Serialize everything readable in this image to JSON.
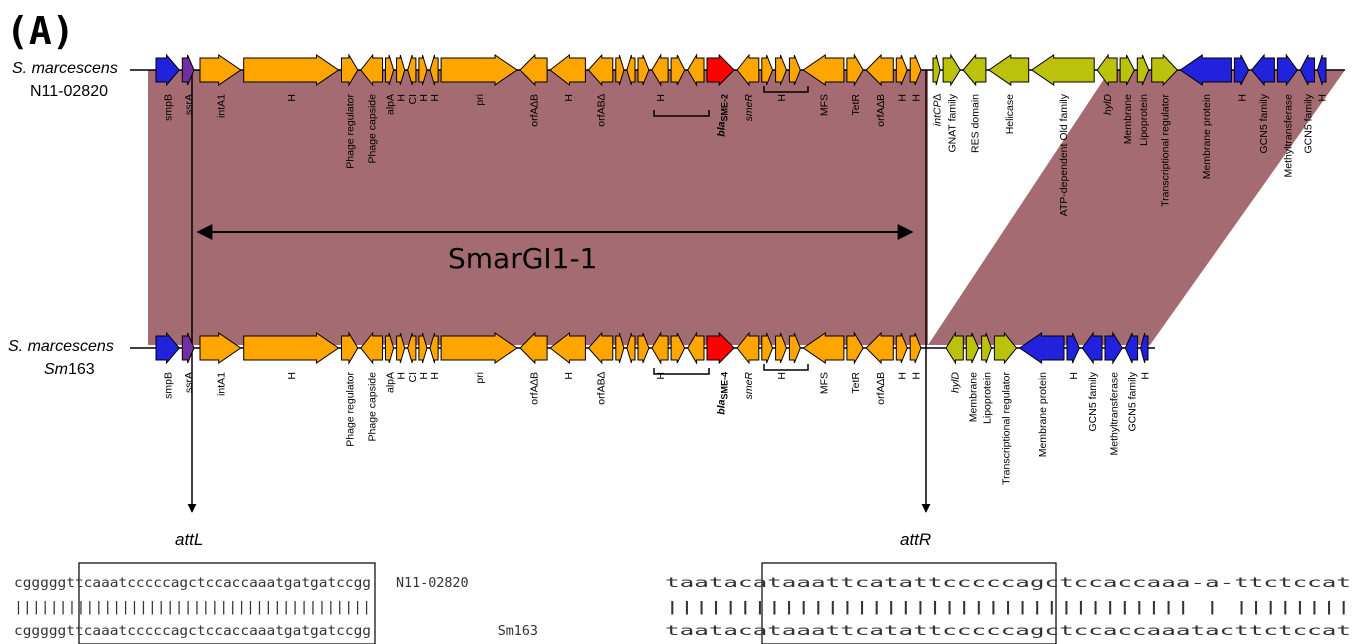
{
  "panel_label": "(A)",
  "island_label": "SmarGI1-1",
  "att_left": "attL",
  "att_right": "attR",
  "colors": {
    "orange": "#ffa500",
    "purple": "#7030a0",
    "blue": "#2222dd",
    "red": "#ff0000",
    "lime": "#bcc20c",
    "shade": "#a56b73"
  },
  "top": {
    "species": "S. marcescens",
    "strain": "N11-02820",
    "genes": [
      {
        "label": "smpB",
        "color": "blue",
        "dir": 1,
        "w": 1
      },
      {
        "label": "ssrA",
        "color": "purple",
        "dir": 1,
        "w": 0.5
      },
      {
        "label": "intA1",
        "color": "orange",
        "dir": 1,
        "w": 1.5
      },
      {
        "label": "H",
        "color": "orange",
        "dir": 1,
        "w": 3.5
      },
      {
        "label": "Phage regulator",
        "color": "orange",
        "dir": 1,
        "w": 0.6
      },
      {
        "label": "Phage capside",
        "color": "orange",
        "dir": -1,
        "w": 0.8
      },
      {
        "label": "alpA",
        "color": "orange",
        "dir": 1,
        "w": 0.3
      },
      {
        "label": "H",
        "color": "orange",
        "dir": 1,
        "w": 0.3
      },
      {
        "label": "CI",
        "color": "orange",
        "dir": -1,
        "w": 0.3
      },
      {
        "label": "H",
        "color": "orange",
        "dir": 1,
        "w": 0.3
      },
      {
        "label": "H",
        "color": "orange",
        "dir": -1,
        "w": 0.3
      },
      {
        "label": "pri",
        "color": "orange",
        "dir": 1,
        "w": 2.8
      },
      {
        "label": "orfA∆B",
        "color": "orange",
        "dir": -1,
        "w": 1
      },
      {
        "label": "H",
        "color": "orange",
        "dir": -1,
        "w": 1.3
      },
      {
        "label": "orfAB∆",
        "color": "orange",
        "dir": -1,
        "w": 0.9
      },
      {
        "label": "",
        "color": "orange",
        "dir": 1,
        "w": 0.3
      },
      {
        "label": "",
        "color": "orange",
        "dir": -1,
        "w": 0.3
      },
      {
        "label": "",
        "color": "orange",
        "dir": 1,
        "w": 0.4
      },
      {
        "label": "H",
        "color": "orange",
        "dir": -1,
        "w": 0.6
      },
      {
        "label": "",
        "color": "orange",
        "dir": 1,
        "w": 0.5
      },
      {
        "label": "",
        "color": "orange",
        "dir": -1,
        "w": 0.6
      },
      {
        "label": "bla",
        "sub": "SME-2",
        "color": "red",
        "dir": 1,
        "w": 1
      },
      {
        "label": "smeR",
        "color": "orange",
        "dir": -1,
        "w": 0.8
      },
      {
        "label": "",
        "color": "orange",
        "dir": 1,
        "w": 0.4
      },
      {
        "label": "H",
        "color": "orange",
        "dir": 1,
        "w": 0.4
      },
      {
        "label": "",
        "color": "orange",
        "dir": 1,
        "w": 0.4
      },
      {
        "label": "MFS",
        "color": "orange",
        "dir": -1,
        "w": 1.5
      },
      {
        "label": "TetR",
        "color": "orange",
        "dir": 1,
        "w": 0.6
      },
      {
        "label": "orfA∆B",
        "color": "orange",
        "dir": -1,
        "w": 1
      },
      {
        "label": "H",
        "color": "orange",
        "dir": 1,
        "w": 0.4
      },
      {
        "label": "H",
        "color": "orange",
        "dir": 1,
        "w": 0.4
      },
      {
        "label": "intCP∆",
        "color": "lime",
        "dir": 1,
        "w": 0.25
      },
      {
        "label": "GNAT family",
        "color": "lime",
        "dir": 1,
        "w": 0.6
      },
      {
        "label": "RES domain",
        "color": "lime",
        "dir": -1,
        "w": 0.8
      },
      {
        "label": "Helicase",
        "color": "lime",
        "dir": -1,
        "w": 1.4
      },
      {
        "label": "ATP-dependent Old family",
        "color": "lime",
        "dir": -1,
        "w": 2.2
      },
      {
        "label": "hylD",
        "color": "lime",
        "dir": -1,
        "w": 0.7
      },
      {
        "label": "Membrane",
        "color": "lime",
        "dir": 1,
        "w": 0.5
      },
      {
        "label": "Lipoprotein",
        "color": "lime",
        "dir": 1,
        "w": 0.4
      },
      {
        "label": "Transcriptional regulator",
        "color": "lime",
        "dir": 1,
        "w": 0.9
      },
      {
        "label": "Membrane protein",
        "color": "blue",
        "dir": -1,
        "w": 1.8
      },
      {
        "label": "H",
        "color": "blue",
        "dir": 1,
        "w": 0.5
      },
      {
        "label": "GCN5 family",
        "color": "blue",
        "dir": -1,
        "w": 0.8
      },
      {
        "label": "Methyltransferase",
        "color": "blue",
        "dir": 1,
        "w": 0.7
      },
      {
        "label": "GCN5 family",
        "color": "blue",
        "dir": -1,
        "w": 0.5
      },
      {
        "label": "H",
        "color": "blue",
        "dir": -1,
        "w": 0.3
      }
    ]
  },
  "bottom": {
    "species": "S. marcescens",
    "strain": "Sm163",
    "genes": [
      {
        "label": "smpB",
        "color": "blue",
        "dir": 1,
        "w": 1
      },
      {
        "label": "ssrA",
        "color": "purple",
        "dir": 1,
        "w": 0.5
      },
      {
        "label": "intA1",
        "color": "orange",
        "dir": 1,
        "w": 1.5
      },
      {
        "label": "H",
        "color": "orange",
        "dir": 1,
        "w": 3.5
      },
      {
        "label": "Phage regulator",
        "color": "orange",
        "dir": 1,
        "w": 0.6
      },
      {
        "label": "Phage capside",
        "color": "orange",
        "dir": -1,
        "w": 0.8
      },
      {
        "label": "alpA",
        "color": "orange",
        "dir": 1,
        "w": 0.3
      },
      {
        "label": "H",
        "color": "orange",
        "dir": 1,
        "w": 0.3
      },
      {
        "label": "CI",
        "color": "orange",
        "dir": -1,
        "w": 0.3
      },
      {
        "label": "H",
        "color": "orange",
        "dir": 1,
        "w": 0.3
      },
      {
        "label": "H",
        "color": "orange",
        "dir": -1,
        "w": 0.3
      },
      {
        "label": "pri",
        "color": "orange",
        "dir": 1,
        "w": 2.8
      },
      {
        "label": "orfA∆B",
        "color": "orange",
        "dir": -1,
        "w": 1
      },
      {
        "label": "H",
        "color": "orange",
        "dir": -1,
        "w": 1.3
      },
      {
        "label": "orfAB∆",
        "color": "orange",
        "dir": -1,
        "w": 0.9
      },
      {
        "label": "",
        "color": "orange",
        "dir": 1,
        "w": 0.3
      },
      {
        "label": "",
        "color": "orange",
        "dir": -1,
        "w": 0.3
      },
      {
        "label": "",
        "color": "orange",
        "dir": 1,
        "w": 0.4
      },
      {
        "label": "H",
        "color": "orange",
        "dir": -1,
        "w": 0.6
      },
      {
        "label": "",
        "color": "orange",
        "dir": 1,
        "w": 0.5
      },
      {
        "label": "",
        "color": "orange",
        "dir": -1,
        "w": 0.6
      },
      {
        "label": "bla",
        "sub": "SME-4",
        "color": "red",
        "dir": 1,
        "w": 1
      },
      {
        "label": "smeR",
        "color": "orange",
        "dir": -1,
        "w": 0.8
      },
      {
        "label": "",
        "color": "orange",
        "dir": 1,
        "w": 0.4
      },
      {
        "label": "H",
        "color": "orange",
        "dir": 1,
        "w": 0.4
      },
      {
        "label": "",
        "color": "orange",
        "dir": 1,
        "w": 0.4
      },
      {
        "label": "MFS",
        "color": "orange",
        "dir": -1,
        "w": 1.5
      },
      {
        "label": "TetR",
        "color": "orange",
        "dir": 1,
        "w": 0.6
      },
      {
        "label": "orfA∆B",
        "color": "orange",
        "dir": -1,
        "w": 1
      },
      {
        "label": "H",
        "color": "orange",
        "dir": 1,
        "w": 0.4
      },
      {
        "label": "H",
        "color": "orange",
        "dir": 1,
        "w": 0.4
      },
      {
        "label": "hylD",
        "color": "lime",
        "dir": -1,
        "w": 0.7
      },
      {
        "label": "Membrane",
        "color": "lime",
        "dir": 1,
        "w": 0.5
      },
      {
        "label": "Lipoprotein",
        "color": "lime",
        "dir": 1,
        "w": 0.4
      },
      {
        "label": "Transcriptional regulator",
        "color": "lime",
        "dir": 1,
        "w": 0.9
      },
      {
        "label": "Membrane protein",
        "color": "blue",
        "dir": -1,
        "w": 1.8
      },
      {
        "label": "H",
        "color": "blue",
        "dir": 1,
        "w": 0.5
      },
      {
        "label": "GCN5 family",
        "color": "blue",
        "dir": -1,
        "w": 0.8
      },
      {
        "label": "Methyltransferase",
        "color": "blue",
        "dir": 1,
        "w": 0.7
      },
      {
        "label": "GCN5 family",
        "color": "blue",
        "dir": -1,
        "w": 0.5
      },
      {
        "label": "H",
        "color": "blue",
        "dir": -1,
        "w": 0.3
      }
    ]
  },
  "alignment": {
    "left": {
      "top": "cgggggttcaaatcccccagctccaccaaatgatgatccgg",
      "match": "||||||||||||||||||||||||||||||||||||||||",
      "bottom": "cgggggttcaaatcccccagctccaccaaatgatgatccgg"
    },
    "label_top": "N11-02820",
    "label_bottom": "Sm163",
    "right": {
      "top": "taatacataaattcatattcccccagctccaccaaa-a-ttctccat",
      "match": "|||||||||||||||||||||||||||||||||||| | ||||||||",
      "bottom": "taatacataaattcatattcccccagctccaccaaatacttctccat"
    }
  }
}
